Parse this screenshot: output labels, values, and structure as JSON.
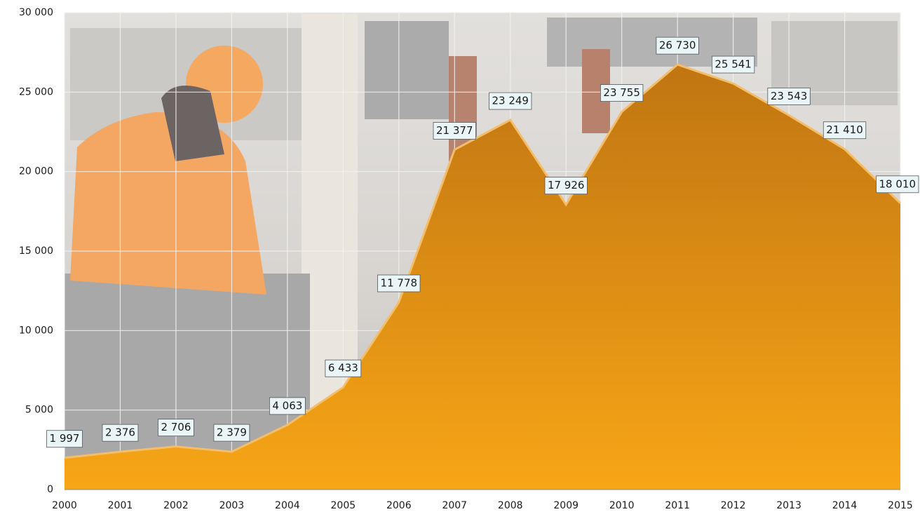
{
  "chart_data": {
    "type": "area",
    "x": [
      2000,
      2001,
      2002,
      2003,
      2004,
      2005,
      2006,
      2007,
      2008,
      2009,
      2010,
      2011,
      2012,
      2013,
      2014,
      2015
    ],
    "values": [
      1997,
      2376,
      2706,
      2379,
      4063,
      6433,
      11778,
      21377,
      23249,
      17926,
      23755,
      26730,
      25541,
      23543,
      21410,
      18010
    ],
    "value_labels": [
      "1 997",
      "2 376",
      "2 706",
      "2 379",
      "4 063",
      "6 433",
      "11 778",
      "21 377",
      "23 249",
      "17 926",
      "23 755",
      "26 730",
      "25 541",
      "23 543",
      "21 410",
      "18 010"
    ],
    "color": "#f0a020",
    "xlim": [
      2000,
      2015
    ],
    "xticks": [
      2000,
      2001,
      2002,
      2003,
      2004,
      2005,
      2006,
      2007,
      2008,
      2009,
      2010,
      2011,
      2012,
      2013,
      2014,
      2015
    ],
    "ylim": [
      0,
      30000
    ],
    "yticks": [
      0,
      {
        "value": 5000,
        "label": "5 000"
      },
      {
        "value": 10000,
        "label": "10 000"
      },
      {
        "value": 15000,
        "label": "15 000"
      },
      {
        "value": 20000,
        "label": "20 000"
      },
      {
        "value": 25000,
        "label": "25 000"
      },
      {
        "value": 30000,
        "label": "30 000"
      }
    ],
    "grid": true
  }
}
